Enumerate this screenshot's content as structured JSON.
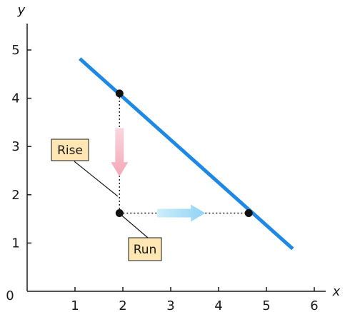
{
  "chart_data": {
    "type": "line",
    "xlabel": "x",
    "ylabel": "y",
    "xlim": [
      0,
      6
    ],
    "ylim": [
      0,
      5
    ],
    "origin_label": "0",
    "x_ticks": [
      1,
      2,
      3,
      4,
      5,
      6
    ],
    "y_ticks": [
      1,
      2,
      3,
      4,
      5
    ],
    "grid": false,
    "line": {
      "x": [
        1.1,
        5.55
      ],
      "y": [
        4.82,
        0.88
      ],
      "color": "#1e88e5"
    },
    "points": [
      {
        "x": 1.93,
        "y": 4.1
      },
      {
        "x": 1.93,
        "y": 1.62
      },
      {
        "x": 4.63,
        "y": 1.62
      }
    ],
    "rise_arrow": {
      "x": 1.93,
      "y_from": 3.38,
      "y_to": 2.38,
      "color": "#f7b8c4"
    },
    "run_arrow": {
      "y": 1.62,
      "x_from": 2.72,
      "x_to": 3.72,
      "color": "#a8dcf5"
    },
    "annotations": [
      {
        "text": "Rise",
        "color": "#ffe6b3"
      },
      {
        "text": "Run",
        "color": "#ffe6b3"
      }
    ]
  }
}
